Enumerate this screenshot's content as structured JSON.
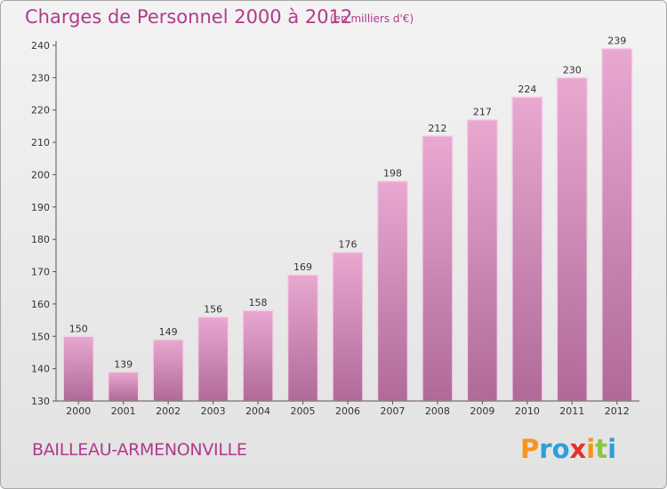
{
  "chart_data": {
    "type": "bar",
    "title": "Charges de Personnel 2000 à 2012",
    "subtitle": "(en milliers d'€)",
    "categories": [
      "2000",
      "2001",
      "2002",
      "2003",
      "2004",
      "2005",
      "2006",
      "2007",
      "2008",
      "2009",
      "2010",
      "2011",
      "2012"
    ],
    "values": [
      150,
      139,
      149,
      156,
      158,
      169,
      176,
      198,
      212,
      217,
      224,
      230,
      239
    ],
    "ylim": [
      130,
      240
    ],
    "yticks": [
      130,
      140,
      150,
      160,
      170,
      180,
      190,
      200,
      210,
      220,
      230,
      240
    ],
    "grid": false,
    "xlabel": "",
    "ylabel": ""
  },
  "commune": "BAILLEAU-ARMENONVILLE",
  "logo": {
    "letters": [
      {
        "char": "P",
        "color": "#f7941d"
      },
      {
        "char": "r",
        "color": "#2e9fd8"
      },
      {
        "char": "o",
        "color": "#2e9fd8"
      },
      {
        "char": "x",
        "color": "#e4322b"
      },
      {
        "char": "i",
        "color": "#f7941d"
      },
      {
        "char": "t",
        "color": "#8cc63f"
      },
      {
        "char": "i",
        "color": "#2e9fd8"
      }
    ]
  },
  "colors": {
    "accent": "#b03a8c",
    "bar_top": "#e8a8d0",
    "bar_bottom": "#b06a98"
  }
}
